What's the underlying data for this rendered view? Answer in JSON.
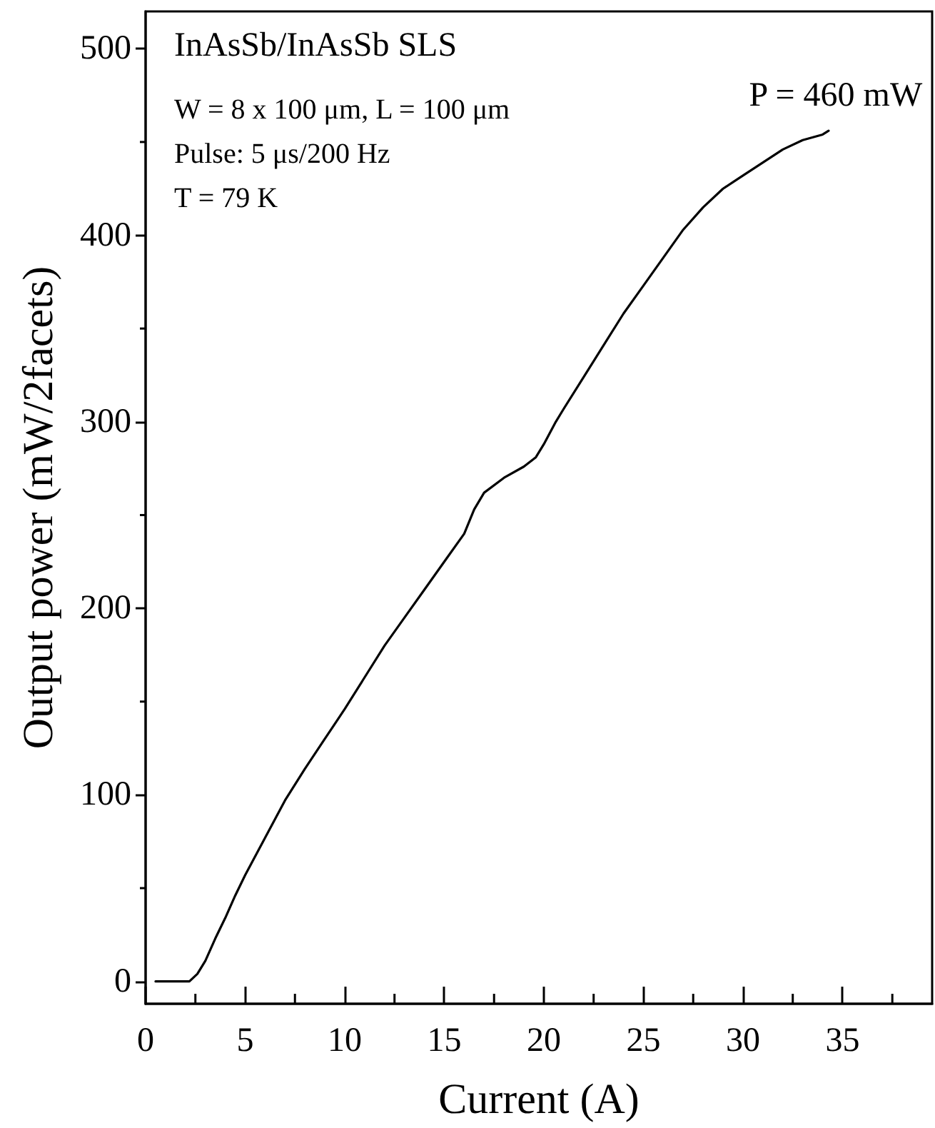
{
  "chart_data": {
    "type": "line",
    "xlabel": "Current (A)",
    "ylabel": "Output power (mW/2facets)",
    "annotations": [
      "InAsSb/InAsSb SLS",
      "W = 8 x 100 μm, L = 100 μm",
      "Pulse: 5 μs/200 Hz",
      "T = 79 K",
      "P = 460 mW"
    ],
    "series": [
      {
        "color": "#000000",
        "x": [
          0.5,
          1,
          1.5,
          2.2,
          2.6,
          3,
          3.5,
          4,
          4.5,
          5,
          6,
          7,
          8,
          9,
          10,
          11,
          12,
          13,
          14,
          15,
          16,
          16.5,
          17,
          18,
          19,
          19.6,
          20,
          20.6,
          21,
          22,
          23,
          24,
          25,
          26,
          27,
          28,
          29,
          30,
          31,
          32,
          33,
          34,
          34.3
        ],
        "values": [
          0,
          0,
          0,
          0,
          4,
          11,
          23,
          34,
          46,
          57,
          77,
          97,
          114,
          130,
          146,
          163,
          180,
          195,
          210,
          225,
          240,
          253,
          262,
          270,
          276,
          281,
          288,
          300,
          307,
          324,
          341,
          358,
          373,
          388,
          403,
          415,
          425,
          432,
          439,
          446,
          451,
          454,
          456
        ]
      }
    ],
    "xlim": [
      0,
      39.5
    ],
    "xticks": [
      0,
      5,
      10,
      15,
      20,
      25,
      30,
      35
    ],
    "ylim": [
      -12,
      520
    ],
    "yticks": [
      0,
      100,
      200,
      300,
      400,
      500
    ],
    "grid": false,
    "marker": "none",
    "line_style": "solid"
  }
}
